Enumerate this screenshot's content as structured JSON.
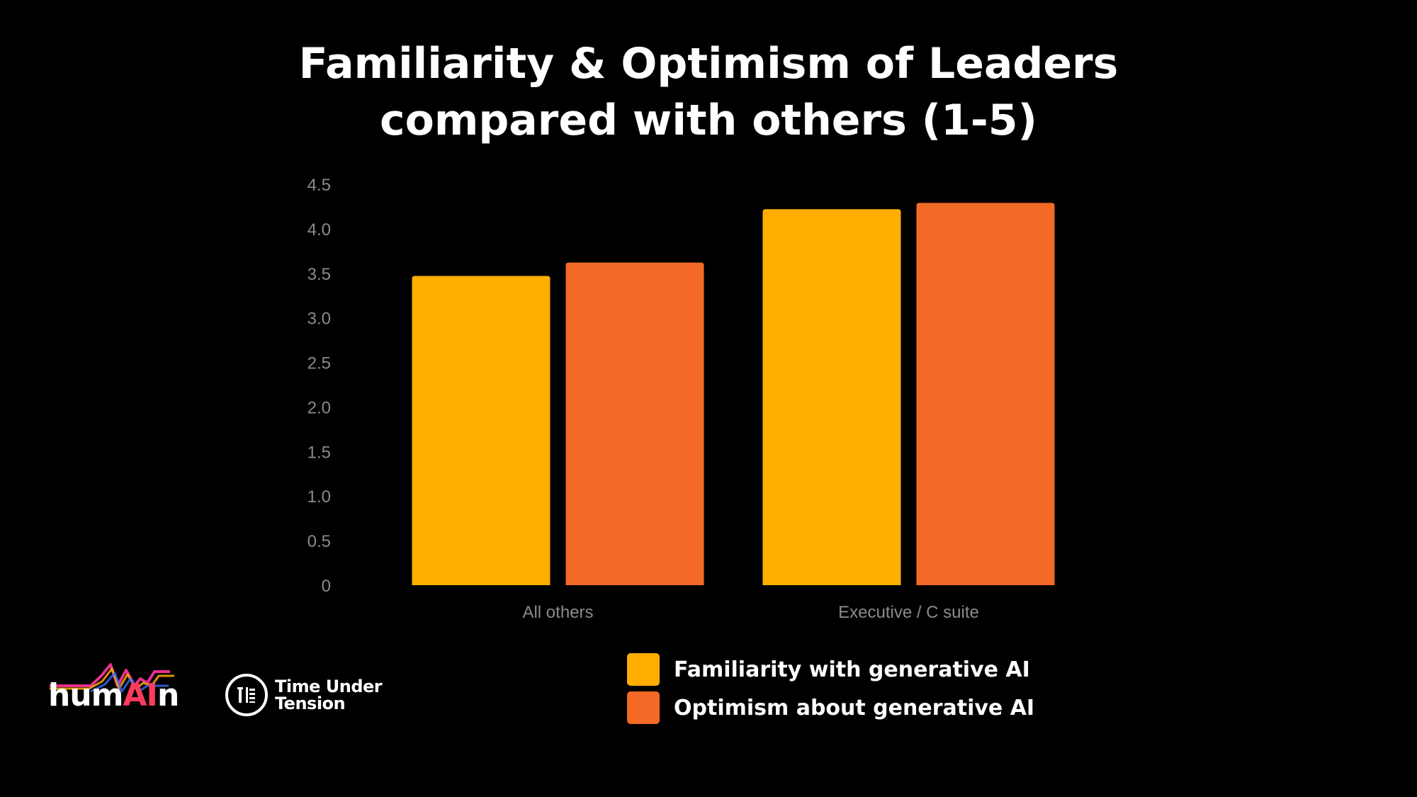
{
  "title": {
    "line1": "Familiarity & Optimism of Leaders",
    "line2": "compared with others (1-5)"
  },
  "chart_data": {
    "type": "bar",
    "categories": [
      "All others",
      "Executive / C suite"
    ],
    "series": [
      {
        "name": "Familiarity with generative AI",
        "values": [
          3.47,
          4.22
        ],
        "color": "#FFAE00"
      },
      {
        "name": "Optimism about generative AI",
        "values": [
          3.62,
          4.29
        ],
        "color": "#F26A25"
      }
    ],
    "ylim": [
      0,
      4.5
    ],
    "yticks": [
      "0",
      "0.5",
      "1.0",
      "1.5",
      "2.0",
      "2.5",
      "3.0",
      "3.5",
      "4.0",
      "4.5"
    ],
    "grid": false,
    "legend_position": "bottom"
  },
  "logos": {
    "humain": {
      "prefix": "hum",
      "ai": "AI",
      "suffix": "n"
    },
    "tut": {
      "line1": "Time Under",
      "line2": "Tension"
    }
  }
}
